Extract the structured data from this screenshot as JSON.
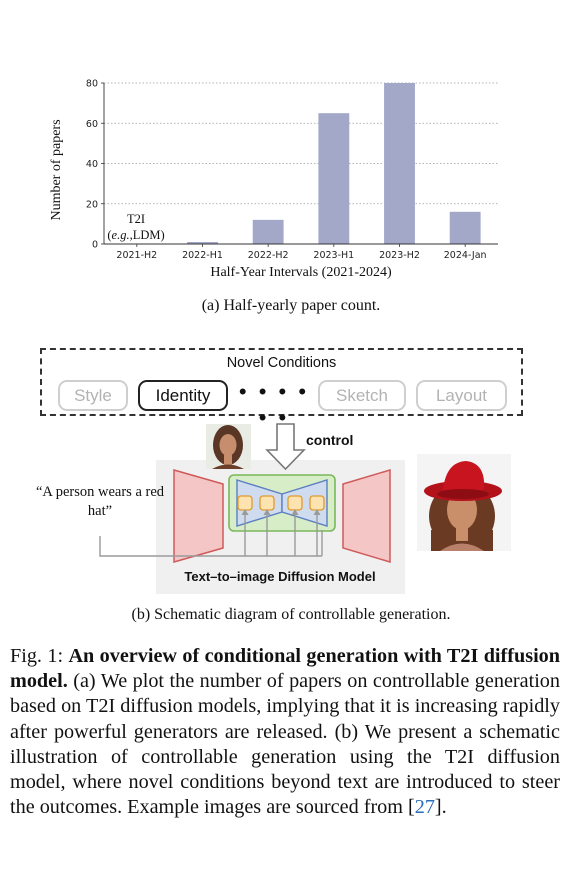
{
  "figure_a": {
    "caption": "(a) Half-yearly paper count.",
    "annotation_line1": "T2I",
    "annotation_line2_italic": "e.g.",
    "annotation_line2_rest": ",LDM)",
    "annotation_line2_open": "("
  },
  "chart_data": {
    "type": "bar",
    "categories": [
      "2021-H2",
      "2022-H1",
      "2022-H2",
      "2023-H1",
      "2023-H2",
      "2024-Jan"
    ],
    "values": [
      0,
      1,
      12,
      65,
      80,
      16
    ],
    "xlabel": "Half-Year Intervals (2021-2024)",
    "ylabel": "Number of papers",
    "ylim": [
      0,
      80
    ],
    "yticks": [
      0,
      20,
      40,
      60,
      80
    ],
    "grid": "horizontal dotted",
    "bar_color": "#a4a8c8"
  },
  "figure_b": {
    "caption": "(b) Schematic diagram of controllable generation.",
    "conditions_title": "Novel Conditions",
    "conditions": [
      {
        "label": "Style",
        "active": false
      },
      {
        "label": "Identity",
        "active": true
      },
      {
        "label": "Sketch",
        "active": false
      },
      {
        "label": "Layout",
        "active": false
      }
    ],
    "dots": "• • • • • •",
    "control_label": "control",
    "prompt_text": "“A person wears a red hat”",
    "model_label": "Text–to–image Diffusion Model",
    "colors": {
      "encoder_fill": "#f4c6c6",
      "encoder_stroke": "#d05a5a",
      "unet_fill": "#d6edc8",
      "unet_stroke": "#7ab85a",
      "inner_fill": "#cfdcf0",
      "inner_stroke": "#5b7fc0",
      "block_fill": "#fde3b0",
      "block_stroke": "#e39a2c",
      "model_bg": "#f0f0f0"
    }
  },
  "main_caption": {
    "label": "Fig. 1:",
    "bold_title": "An overview of conditional generation with T2I diffusion model.",
    "body_before_ref": "(a) We plot the number of papers on controllable generation based on T2I diffusion models, implying that it is increasing rapidly after powerful generators are released. (b) We present a schematic illustration of controllable generation using the T2I diffusion model, where novel conditions beyond text are introduced to steer the outcomes. Example images are sourced from [",
    "ref": "27",
    "body_after_ref": "]."
  }
}
